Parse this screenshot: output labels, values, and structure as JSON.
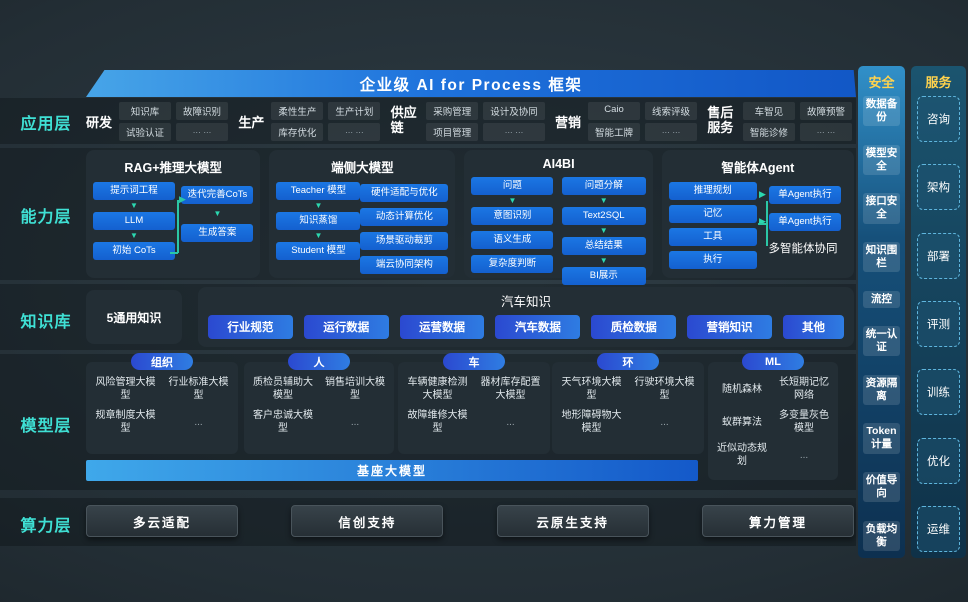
{
  "banner": {
    "title": "企业级 AI for Process 框架"
  },
  "app": {
    "label": "应用层",
    "groups": [
      {
        "name": "研发",
        "items": [
          "知识库",
          "故障识别",
          "试验认证",
          "... ..."
        ]
      },
      {
        "name": "生产",
        "items": [
          "柔性生产",
          "生产计划",
          "库存优化",
          "... ..."
        ]
      },
      {
        "name": "供应链",
        "items": [
          "采购管理",
          "设计及协同",
          "项目管理",
          "... ..."
        ]
      },
      {
        "name": "营销",
        "items": [
          "Caio",
          "线索评级",
          "智能工牌",
          "... ..."
        ]
      },
      {
        "name": "售后服务",
        "items": [
          "车智见",
          "故障预警",
          "智能诊修",
          "... ..."
        ]
      }
    ]
  },
  "cap": {
    "label": "能力层",
    "rag": {
      "title": "RAG+推理大模型",
      "steps": [
        "提示词工程",
        "LLM",
        "初始 CoTs",
        "迭代完善CoTs",
        "生成答案"
      ]
    },
    "edge": {
      "title": "端侧大模型",
      "left": [
        "Teacher 模型",
        "知识蒸馏",
        "Student 模型"
      ],
      "right": [
        "硬件适配与优化",
        "动态计算优化",
        "场景驱动裁剪",
        "端云协同架构"
      ]
    },
    "ai4bi": {
      "title": "AI4BI",
      "left": [
        "问题",
        "意图识别",
        "语义生成",
        "复杂度判断"
      ],
      "right": [
        "问题分解",
        "Text2SQL",
        "总结结果",
        "BI展示"
      ]
    },
    "agent": {
      "title": "智能体Agent",
      "left": [
        "推理规划",
        "记忆",
        "工具",
        "执行"
      ],
      "right": [
        "单Agent执行",
        "单Agent执行"
      ],
      "note": "多智能体协同"
    }
  },
  "know": {
    "label": "知识库",
    "general": "5通用知识",
    "auto_title": "汽车知识",
    "chips": [
      "行业规范",
      "运行数据",
      "运营数据",
      "汽车数据",
      "质检数据",
      "营销知识",
      "其他"
    ]
  },
  "model": {
    "label": "模型层",
    "groups": [
      {
        "pill": "组织",
        "cells": [
          "风险管理大模型",
          "行业标准大模型",
          "规章制度大模型",
          "..."
        ]
      },
      {
        "pill": "人",
        "cells": [
          "质检员辅助大模型",
          "销售培训大模型",
          "客户忠诚大模型",
          "..."
        ]
      },
      {
        "pill": "车",
        "cells": [
          "车辆健康检测大模型",
          "器材库存配置大模型",
          "故障维修大模型",
          "..."
        ]
      },
      {
        "pill": "环",
        "cells": [
          "天气环境大模型",
          "行驶环境大模型",
          "地形障碍物大模型",
          "..."
        ]
      },
      {
        "pill": "ML",
        "cells": [
          "随机森林",
          "长短期记忆网络",
          "蚁群算法",
          "多变量灰色模型",
          "近似动态规划",
          "..."
        ]
      }
    ],
    "base": "基座大模型"
  },
  "compute": {
    "label": "算力层",
    "buttons": [
      "多云适配",
      "信创支持",
      "云原生支持",
      "算力管理"
    ]
  },
  "security": {
    "title": "安全",
    "items": [
      "数据备份",
      "模型安全",
      "接口安全",
      "知识围栏",
      "流控",
      "统一认证",
      "资源隔离",
      "Token计量",
      "价值导向",
      "负载均衡"
    ]
  },
  "service": {
    "title": "服务",
    "items": [
      "咨询",
      "架构",
      "部署",
      "评测",
      "训练",
      "优化",
      "运维"
    ]
  },
  "colors": {
    "accent_blue": "#1b6fd8",
    "chip_gradient_start": "#2b49d0",
    "chip_gradient_end": "#2e7ce2",
    "teal_arrow": "#2bd8b0",
    "layer_label_cyan": "#3fe0d4",
    "column_header_yellow": "#ffd34d"
  }
}
